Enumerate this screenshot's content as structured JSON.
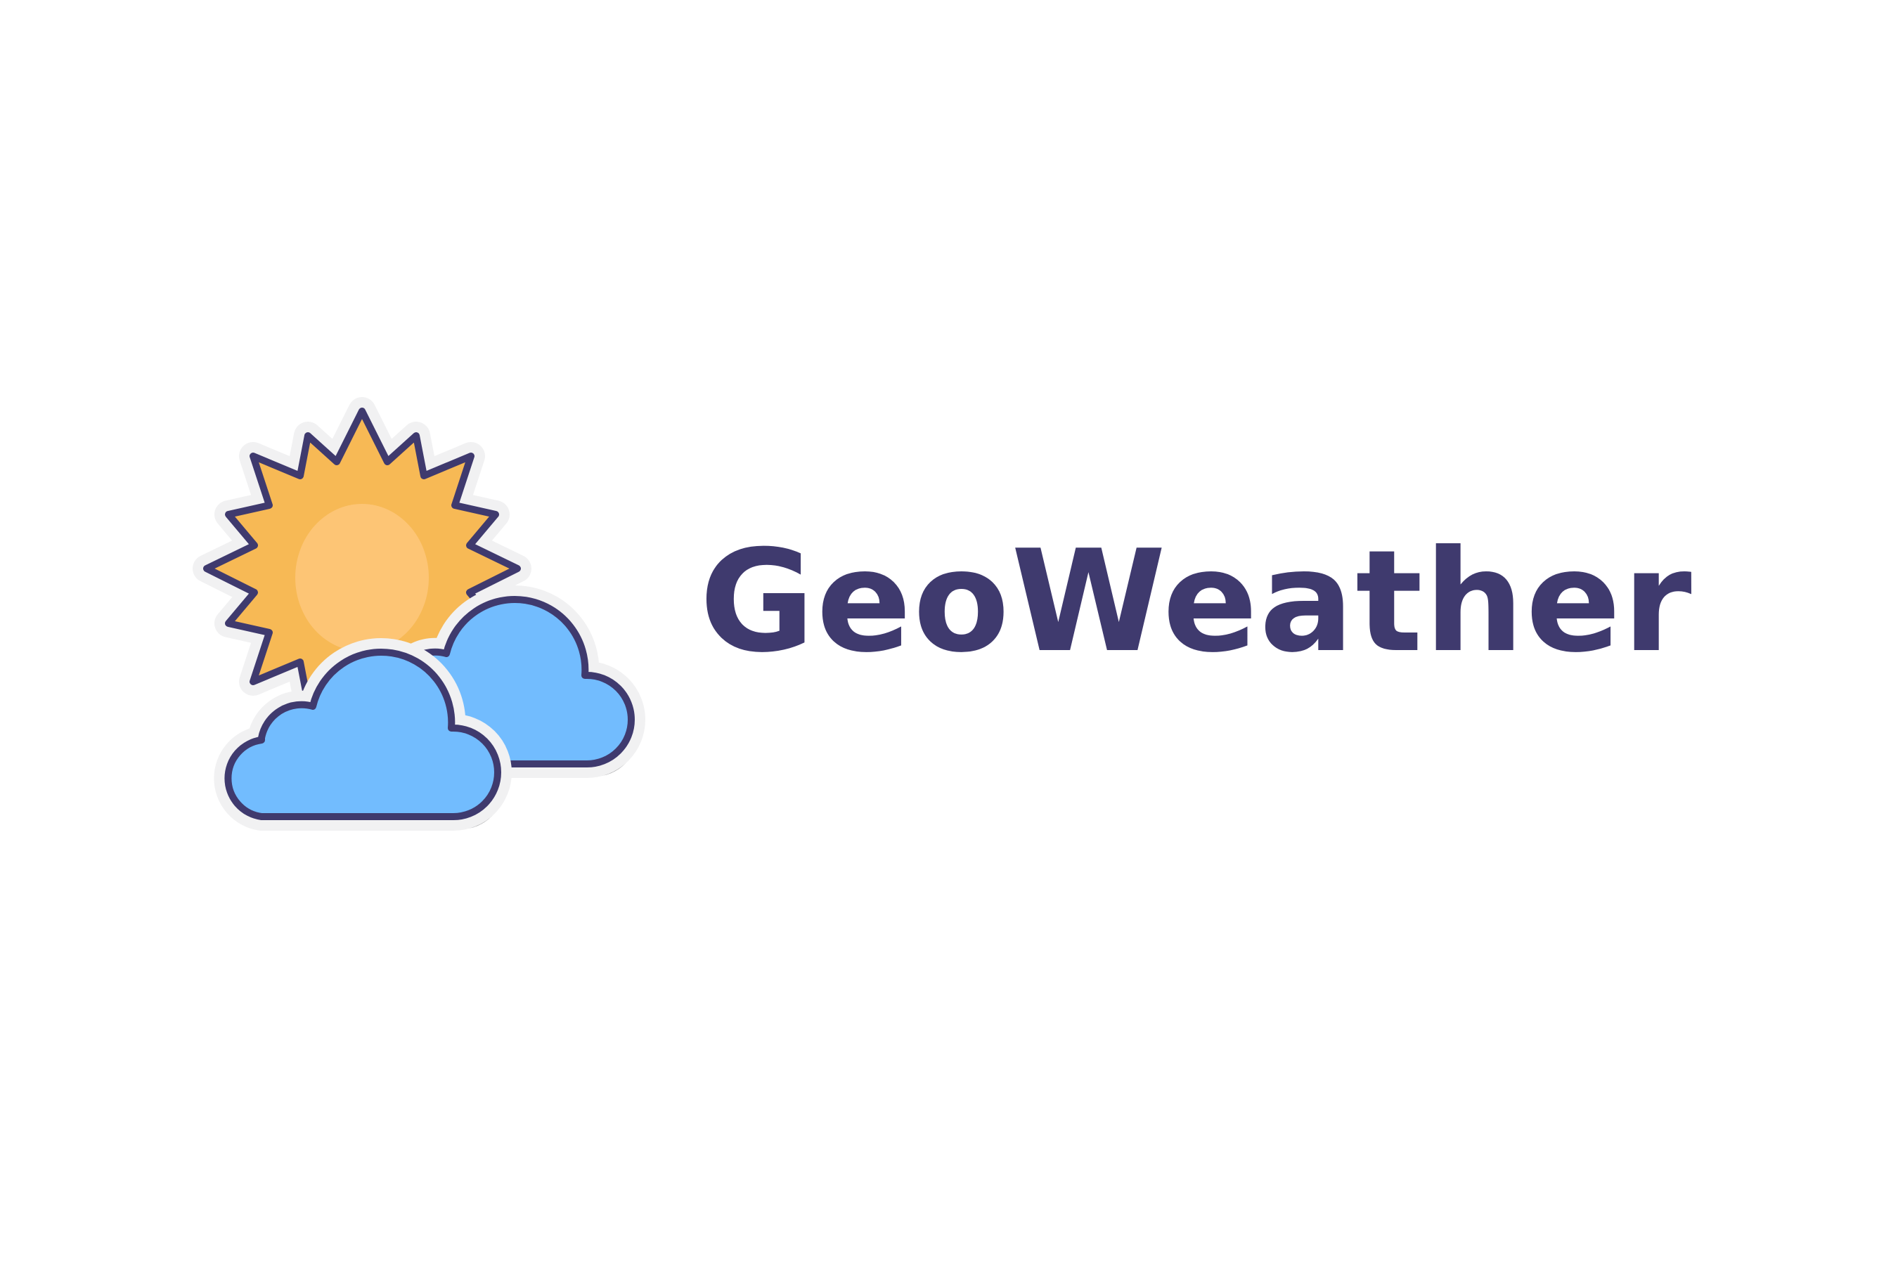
{
  "brand": {
    "name": "GeoWeather",
    "text_color": "#3f3a6e"
  },
  "icon": {
    "name": "partly-cloudy-weather-icon",
    "colors": {
      "sun_rays": "#f7b955",
      "sun_core": "#fdc575",
      "cloud_fill": "#72bcfe",
      "outline": "#3f3a6e",
      "sticker_border": "#f1f1f2",
      "shadow": "#a9a9aa"
    }
  }
}
